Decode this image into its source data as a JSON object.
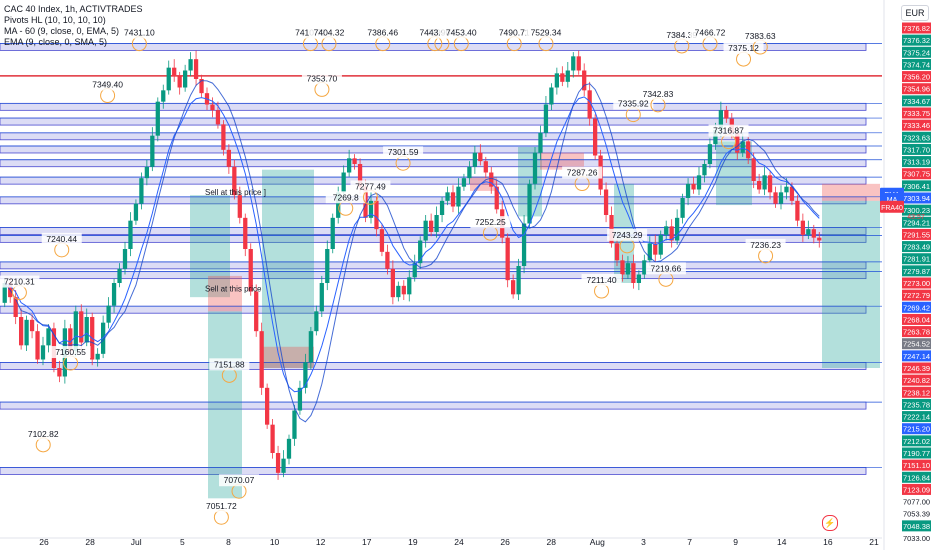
{
  "header": {
    "title": "CAC 40 Index, 1h, ACTIVTRADES",
    "indicators": [
      "Pivots HL (10, 10, 10, 10)",
      "MA - 60 (9, close, 0, EMA, 5)",
      "EMA (9, close, 0, SMA, 5)"
    ],
    "currency": "EUR"
  },
  "colors": {
    "up": "#089981",
    "down": "#f23645",
    "zone_fill": "#dcdcf5",
    "zone_border": "#4a4ad0",
    "line_blue": "#1e4fd8",
    "resistance_red": "#e0303a",
    "ema_line": "#2962ff",
    "ma_line": "#1848cc",
    "green_box": "#26a69a",
    "red_box": "#ef5350",
    "pivot_circle": "#f5a742"
  },
  "icons": {
    "alert": "lightning-icon"
  },
  "chart_data": {
    "type": "candlestick",
    "title": "CAC 40 Index, 1h, ACTIVTRADES",
    "ylim": [
      7030,
      7390
    ],
    "x_ticks": [
      "26",
      "28",
      "Jul",
      "5",
      "8",
      "10",
      "12",
      "17",
      "19",
      "24",
      "26",
      "28",
      "Aug",
      "3",
      "7",
      "9",
      "14",
      "16",
      "21"
    ],
    "y_axis_labels": [
      {
        "value": 7376.82,
        "text": "7376.82",
        "kind": "red"
      },
      {
        "value": 7376.32,
        "text": "7376.32",
        "kind": "green"
      },
      {
        "value": 7375.24,
        "text": "7375.24",
        "kind": "green"
      },
      {
        "value": 7374.74,
        "text": "7374.74",
        "kind": "green"
      },
      {
        "value": 7356.2,
        "text": "7356.20",
        "kind": "red"
      },
      {
        "value": 7354.96,
        "text": "7354.96",
        "kind": "red"
      },
      {
        "value": 7334.67,
        "text": "7334.67",
        "kind": "green"
      },
      {
        "value": 7333.75,
        "text": "7333.75",
        "kind": "red"
      },
      {
        "value": 7333.46,
        "text": "7333.46",
        "kind": "red"
      },
      {
        "value": 7323.63,
        "text": "7323.63",
        "kind": "green"
      },
      {
        "value": 7317.7,
        "text": "7317.70",
        "kind": "green"
      },
      {
        "value": 7313.19,
        "text": "7313.19",
        "kind": "green"
      },
      {
        "value": 7307.75,
        "text": "7307.75",
        "kind": "red"
      },
      {
        "value": 7306.41,
        "text": "7306.41",
        "kind": "green"
      },
      {
        "value": 7303.94,
        "text": "7303.94",
        "kind": "blue"
      },
      {
        "value": 7300.23,
        "text": "7300.23",
        "kind": "green"
      },
      {
        "value": 7294.21,
        "text": "7294.21",
        "kind": "green"
      },
      {
        "value": 7291.55,
        "text": "7291.55",
        "kind": "red"
      },
      {
        "value": 7283.49,
        "text": "7283.49",
        "kind": "green"
      },
      {
        "value": 7281.91,
        "text": "7281.91",
        "kind": "green"
      },
      {
        "value": 7279.87,
        "text": "7279.87",
        "kind": "green"
      },
      {
        "value": 7273.0,
        "text": "7273.00",
        "kind": "red"
      },
      {
        "value": 7272.79,
        "text": "7272.79",
        "kind": "red"
      },
      {
        "value": 7269.42,
        "text": "7269.42",
        "kind": "blue"
      },
      {
        "value": 7268.04,
        "text": "7268.04",
        "kind": "red"
      },
      {
        "value": 7263.78,
        "text": "7263.78",
        "kind": "red"
      },
      {
        "value": 7254.52,
        "text": "7254.52",
        "kind": "gray"
      },
      {
        "value": 7247.14,
        "text": "7247.14",
        "kind": "blue"
      },
      {
        "value": 7246.39,
        "text": "7246.39",
        "kind": "red"
      },
      {
        "value": 7240.82,
        "text": "7240.82",
        "kind": "red"
      },
      {
        "value": 7238.12,
        "text": "7238.12",
        "kind": "red"
      },
      {
        "value": 7235.78,
        "text": "7235.78",
        "kind": "green"
      },
      {
        "value": 7222.14,
        "text": "7222.14",
        "kind": "green"
      },
      {
        "value": 7215.2,
        "text": "7215.20",
        "kind": "blue"
      },
      {
        "value": 7212.02,
        "text": "7212.02",
        "kind": "green"
      },
      {
        "value": 7190.77,
        "text": "7190.77",
        "kind": "green"
      },
      {
        "value": 7151.1,
        "text": "7151.10",
        "kind": "red"
      },
      {
        "value": 7126.84,
        "text": "7126.84",
        "kind": "green"
      },
      {
        "value": 7123.09,
        "text": "7123.09",
        "kind": "red"
      },
      {
        "value": 7077.0,
        "text": "7077.00",
        "kind": "plain"
      },
      {
        "value": 7053.39,
        "text": "7053.39",
        "kind": "plain"
      },
      {
        "value": 7048.38,
        "text": "7048.38",
        "kind": "green"
      },
      {
        "value": 7033.0,
        "text": "7033.00",
        "kind": "plain"
      }
    ],
    "price_tags": [
      {
        "label": "EMA",
        "value": 7273.0
      },
      {
        "label": "MA",
        "value": 7269.42
      },
      {
        "label": "FRA40",
        "value": 7263.78,
        "countdown": "43:57"
      }
    ],
    "pivot_labels": [
      {
        "text": "7431.10",
        "x": 0.158,
        "value": 7431.1
      },
      {
        "text": "7349.40",
        "x": 0.122,
        "value": 7349.4
      },
      {
        "text": "7240.44",
        "x": 0.07,
        "value": 7240.44
      },
      {
        "text": "7210.31",
        "x": 0.022,
        "value": 7210.31
      },
      {
        "text": "7160.55",
        "x": 0.08,
        "value": 7160.55
      },
      {
        "text": "7102.82",
        "x": 0.049,
        "value": 7102.82
      },
      {
        "text": "7151.88",
        "x": 0.26,
        "value": 7151.88
      },
      {
        "text": "7070.07",
        "x": 0.271,
        "value": 7070.07
      },
      {
        "text": "7051.72",
        "x": 0.251,
        "value": 7051.72
      },
      {
        "text": "7410.72",
        "x": 0.352,
        "value": 7410.72
      },
      {
        "text": "7404.32",
        "x": 0.373,
        "value": 7404.32
      },
      {
        "text": "7353.70",
        "x": 0.365,
        "value": 7353.7
      },
      {
        "text": "7269.8",
        "x": 0.392,
        "value": 7269.8
      },
      {
        "text": "7277.49",
        "x": 0.42,
        "value": 7277.49
      },
      {
        "text": "7301.59",
        "x": 0.457,
        "value": 7301.59
      },
      {
        "text": "7386.46",
        "x": 0.434,
        "value": 7386.46
      },
      {
        "text": "7391.65",
        "x": 0.501,
        "value": 7391.65
      },
      {
        "text": "7443.90",
        "x": 0.493,
        "value": 7443.9
      },
      {
        "text": "7453.40",
        "x": 0.523,
        "value": 7453.4
      },
      {
        "text": "7252.25",
        "x": 0.556,
        "value": 7252.25
      },
      {
        "text": "7490.71",
        "x": 0.583,
        "value": 7490.71
      },
      {
        "text": "7529.34",
        "x": 0.619,
        "value": 7529.34
      },
      {
        "text": "7287.26",
        "x": 0.66,
        "value": 7287.26
      },
      {
        "text": "7211.40",
        "x": 0.682,
        "value": 7211.4
      },
      {
        "text": "7243.29",
        "x": 0.711,
        "value": 7243.29
      },
      {
        "text": "7335.92",
        "x": 0.718,
        "value": 7335.92
      },
      {
        "text": "7342.83",
        "x": 0.746,
        "value": 7342.83
      },
      {
        "text": "7219.66",
        "x": 0.755,
        "value": 7219.66
      },
      {
        "text": "7384.39",
        "x": 0.773,
        "value": 7384.39
      },
      {
        "text": "7466.72",
        "x": 0.805,
        "value": 7466.72
      },
      {
        "text": "7375.12",
        "x": 0.843,
        "value": 7375.12
      },
      {
        "text": "7383.63",
        "x": 0.862,
        "value": 7383.63
      },
      {
        "text": "7316.87",
        "x": 0.826,
        "value": 7316.87
      },
      {
        "text": "7236.23",
        "x": 0.868,
        "value": 7236.23
      }
    ],
    "annotations": [
      {
        "text": "Sell at this price ]",
        "value": 7272.0
      },
      {
        "text": "Sell at this price",
        "value": 7204.0
      }
    ],
    "zones": [
      7376.3,
      7334.0,
      7323.6,
      7313.2,
      7303.9,
      7294.2,
      7281.9,
      7268.0,
      7246.4,
      7240.8,
      7222.1,
      7215.2,
      7190.8,
      7151.1,
      7123.1,
      7077.0
    ],
    "resistance_line": 7356.2,
    "candles": {
      "start": 7196,
      "moves": [
        14,
        -10,
        -14,
        -20,
        18,
        -8,
        -20,
        10,
        12,
        -28,
        -6,
        34,
        -16,
        28,
        -22,
        18,
        -30,
        4,
        22,
        12,
        16,
        10,
        14,
        20,
        12,
        18,
        8,
        22,
        24,
        8,
        16,
        -6,
        -8,
        12,
        8,
        -14,
        -10,
        -8,
        -4,
        -10,
        -18,
        -12,
        -20,
        -16,
        -22,
        -30,
        -28,
        -40,
        -26,
        -20,
        -14,
        10,
        14,
        20,
        16,
        18,
        22,
        14,
        20,
        24,
        22,
        18,
        14,
        10,
        -4,
        -16,
        -22,
        12,
        -20,
        -16,
        -12,
        -20,
        8,
        -6,
        12,
        10,
        16,
        14,
        -8,
        12,
        10,
        6,
        -10,
        14,
        6,
        8,
        10,
        -6,
        -8,
        -10,
        -16,
        -20,
        -30,
        -10,
        20,
        30,
        28,
        22,
        14,
        20,
        12,
        10,
        -6,
        8,
        10,
        -10,
        -14,
        -20,
        -26,
        -24,
        -18,
        -20,
        -12,
        -10,
        8,
        -14,
        6,
        10,
        12,
        -8,
        14,
        6,
        -10,
        16,
        14,
        10,
        -4,
        10,
        8,
        14,
        10,
        14,
        -6,
        -10,
        -14,
        8,
        -12,
        -16,
        -6,
        10,
        -12,
        -8,
        8,
        4,
        -10,
        -14,
        -10,
        4,
        -6,
        -2
      ]
    }
  }
}
